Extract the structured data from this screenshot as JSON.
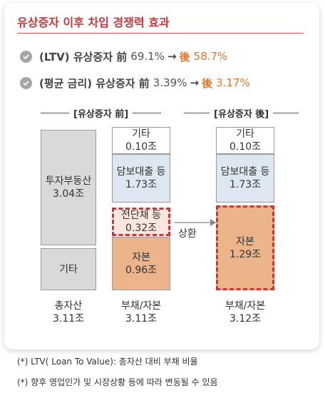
{
  "title": "유상증자 이후 차입 경쟁력 효과",
  "bullets": [
    {
      "label": "(LTV) 유상증자 前",
      "before": "69.1%",
      "arrow": "→",
      "after_label": "後",
      "after_value": "58.7%"
    },
    {
      "label": "(평균 금리) 유상증자 前",
      "before": "3.39%",
      "arrow": "→",
      "after_label": "後",
      "after_value": "3.17%"
    }
  ],
  "columns": {
    "before_header": "[유상증자 前]",
    "after_header": "[유상증자 後]"
  },
  "assets": {
    "real_estate": {
      "name": "투자부동산",
      "value": "3.04조"
    },
    "other": {
      "name": "기타"
    },
    "label": "총자산",
    "total": "3.11조"
  },
  "before_liab": {
    "other": {
      "name": "기타",
      "value": "0.10조"
    },
    "secured": {
      "name": "담보대출 등",
      "value": "1.73조"
    },
    "bond": {
      "name": "전단채 등",
      "value": "0.32조"
    },
    "capital": {
      "name": "자본",
      "value": "0.96조"
    },
    "label": "부채/자본",
    "total": "3.11조"
  },
  "after_liab": {
    "other": {
      "name": "기타",
      "value": "0.10조"
    },
    "secured": {
      "name": "담보대출 등",
      "value": "1.73조"
    },
    "capital": {
      "name": "자본",
      "value": "1.29조"
    },
    "label": "부채/자본",
    "total": "3.12조"
  },
  "transfer_label": "상환",
  "notes": [
    "(*) LTV( Loan To Value):  총자산 대비 부채 비율",
    "(*) 향후 영업인가 및 시장상황 등에 따라 변동될 수 있음"
  ],
  "colors": {
    "title_red": "#c8373c",
    "after_orange": "#e0772b",
    "capital_fill": "#ecb48a",
    "loan_fill": "#dde7f1",
    "asset_gray": "#d9d9d9"
  }
}
